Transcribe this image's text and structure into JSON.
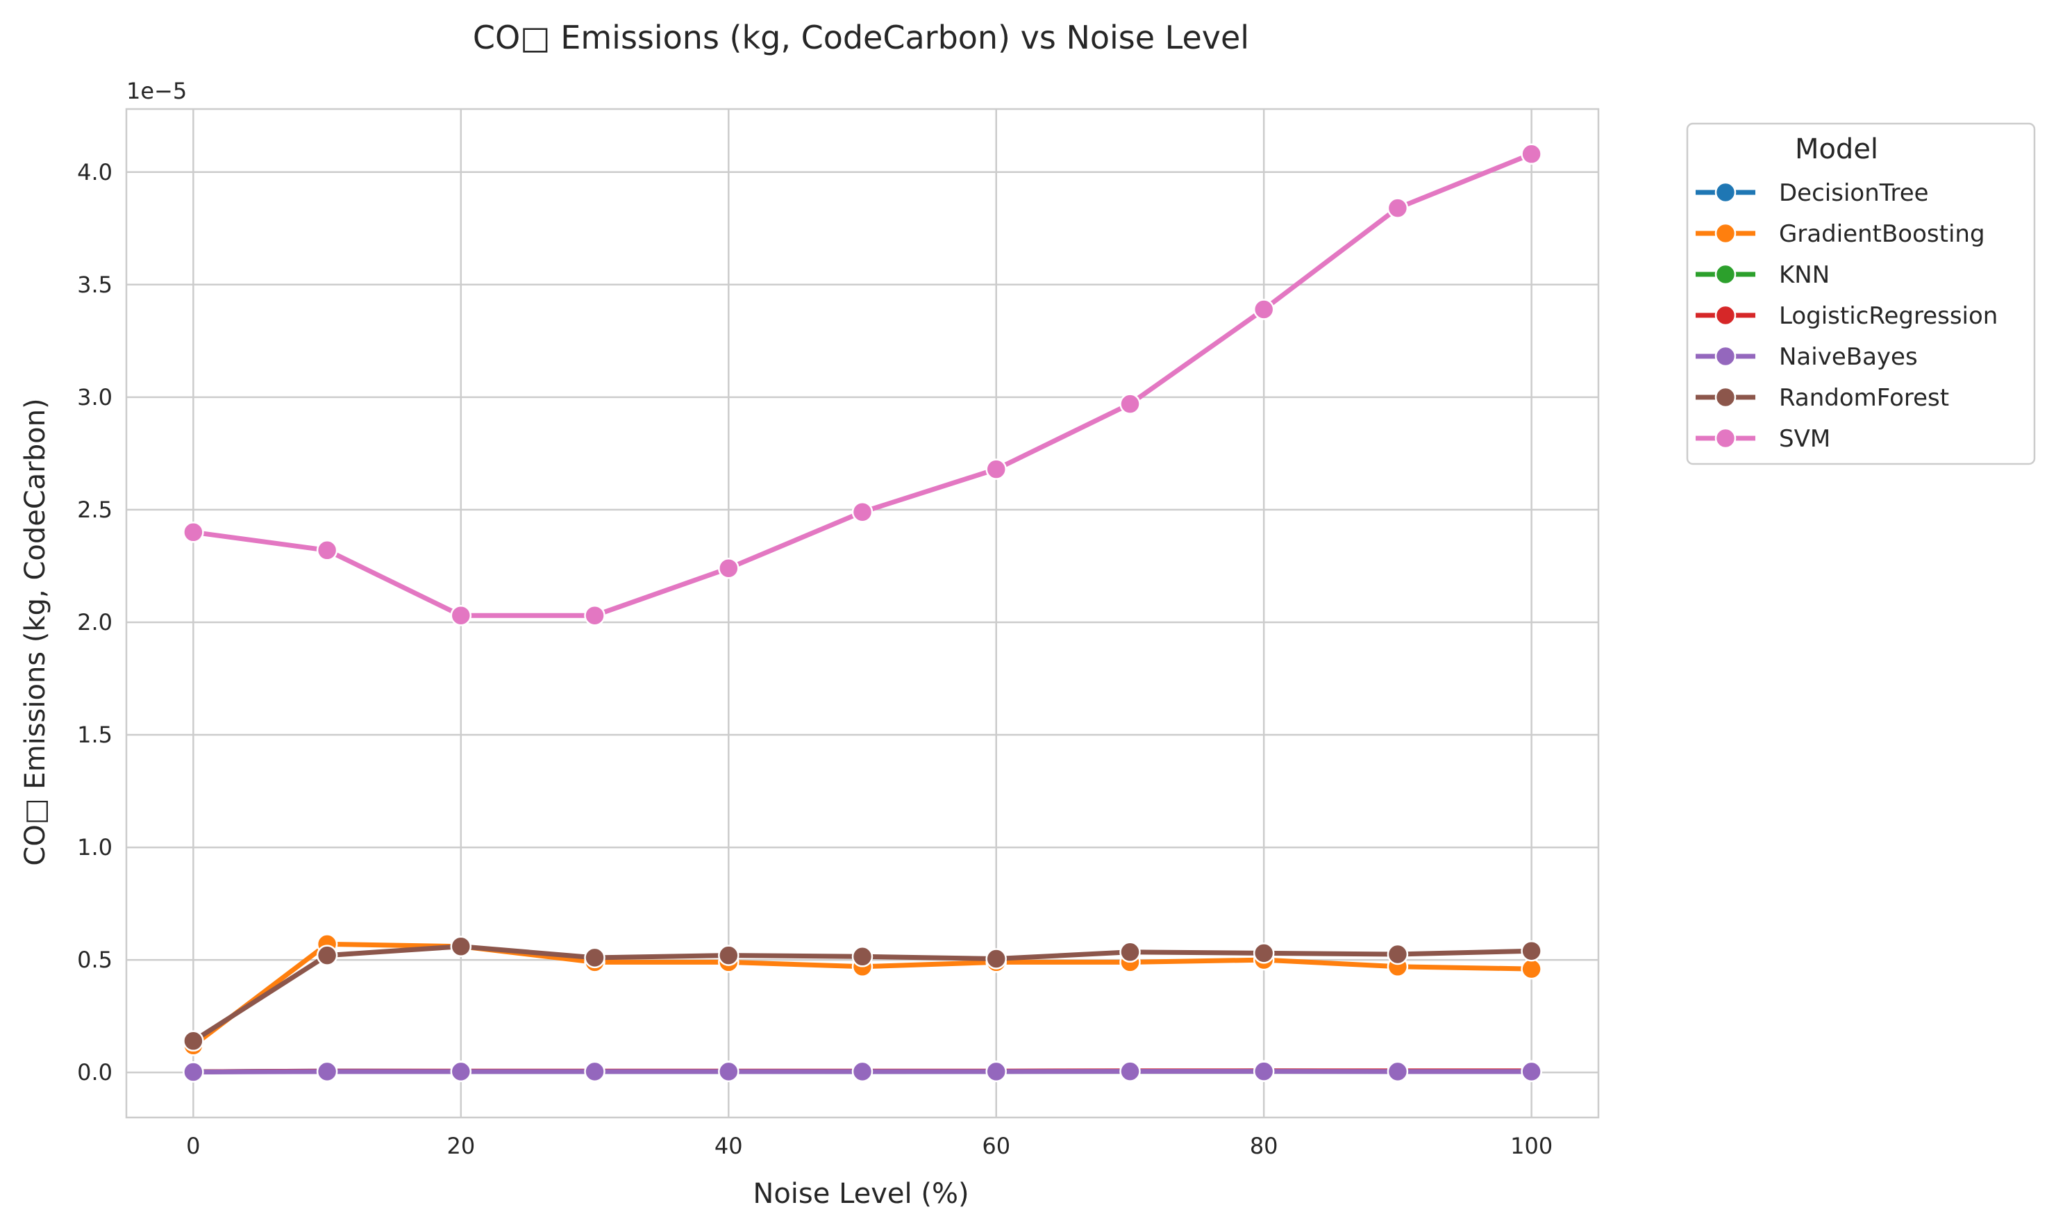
{
  "chart_data": {
    "type": "line",
    "title": "CO□ Emissions (kg, CodeCarbon) vs Noise Level",
    "xlabel": "Noise Level (%)",
    "ylabel": "CO□ Emissions (kg, CodeCarbon)",
    "y_offset_label": "1e−5",
    "x": [
      0,
      10,
      20,
      30,
      40,
      50,
      60,
      70,
      80,
      90,
      100
    ],
    "xlim": [
      -5,
      105
    ],
    "ylim": [
      -0.2,
      4.28
    ],
    "xticks": [
      0,
      20,
      40,
      60,
      80,
      100
    ],
    "xtick_labels": [
      "0",
      "20",
      "40",
      "60",
      "80",
      "100"
    ],
    "yticks": [
      0.0,
      0.5,
      1.0,
      1.5,
      2.0,
      2.5,
      3.0,
      3.5,
      4.0
    ],
    "ytick_labels": [
      "0.0",
      "0.5",
      "1.0",
      "1.5",
      "2.0",
      "2.5",
      "3.0",
      "3.5",
      "4.0"
    ],
    "grid": true,
    "legend": {
      "title": "Model",
      "placement": "outside-top-right"
    },
    "series": [
      {
        "name": "DecisionTree",
        "color": "#1f77b4",
        "values": [
          0.003,
          0.006,
          0.005,
          0.005,
          0.005,
          0.004,
          0.005,
          0.006,
          0.007,
          0.006,
          0.006
        ]
      },
      {
        "name": "GradientBoosting",
        "color": "#ff7f0e",
        "values": [
          0.12,
          0.57,
          0.56,
          0.49,
          0.49,
          0.47,
          0.49,
          0.49,
          0.5,
          0.47,
          0.46
        ]
      },
      {
        "name": "KNN",
        "color": "#2ca02c",
        "values": [
          0.003,
          0.005,
          0.005,
          0.005,
          0.005,
          0.005,
          0.005,
          0.005,
          0.005,
          0.005,
          0.005
        ]
      },
      {
        "name": "LogisticRegression",
        "color": "#d62728",
        "values": [
          0.003,
          0.006,
          0.006,
          0.006,
          0.006,
          0.006,
          0.006,
          0.007,
          0.007,
          0.007,
          0.007
        ]
      },
      {
        "name": "NaiveBayes",
        "color": "#9467bd",
        "values": [
          0.002,
          0.004,
          0.004,
          0.004,
          0.004,
          0.004,
          0.004,
          0.005,
          0.005,
          0.004,
          0.004
        ]
      },
      {
        "name": "RandomForest",
        "color": "#8c564b",
        "values": [
          0.14,
          0.52,
          0.56,
          0.51,
          0.52,
          0.515,
          0.505,
          0.535,
          0.53,
          0.525,
          0.54
        ]
      },
      {
        "name": "SVM",
        "color": "#e377c2",
        "values": [
          2.4,
          2.32,
          2.03,
          2.03,
          2.24,
          2.49,
          2.68,
          2.97,
          3.39,
          3.84,
          4.08
        ]
      }
    ]
  }
}
